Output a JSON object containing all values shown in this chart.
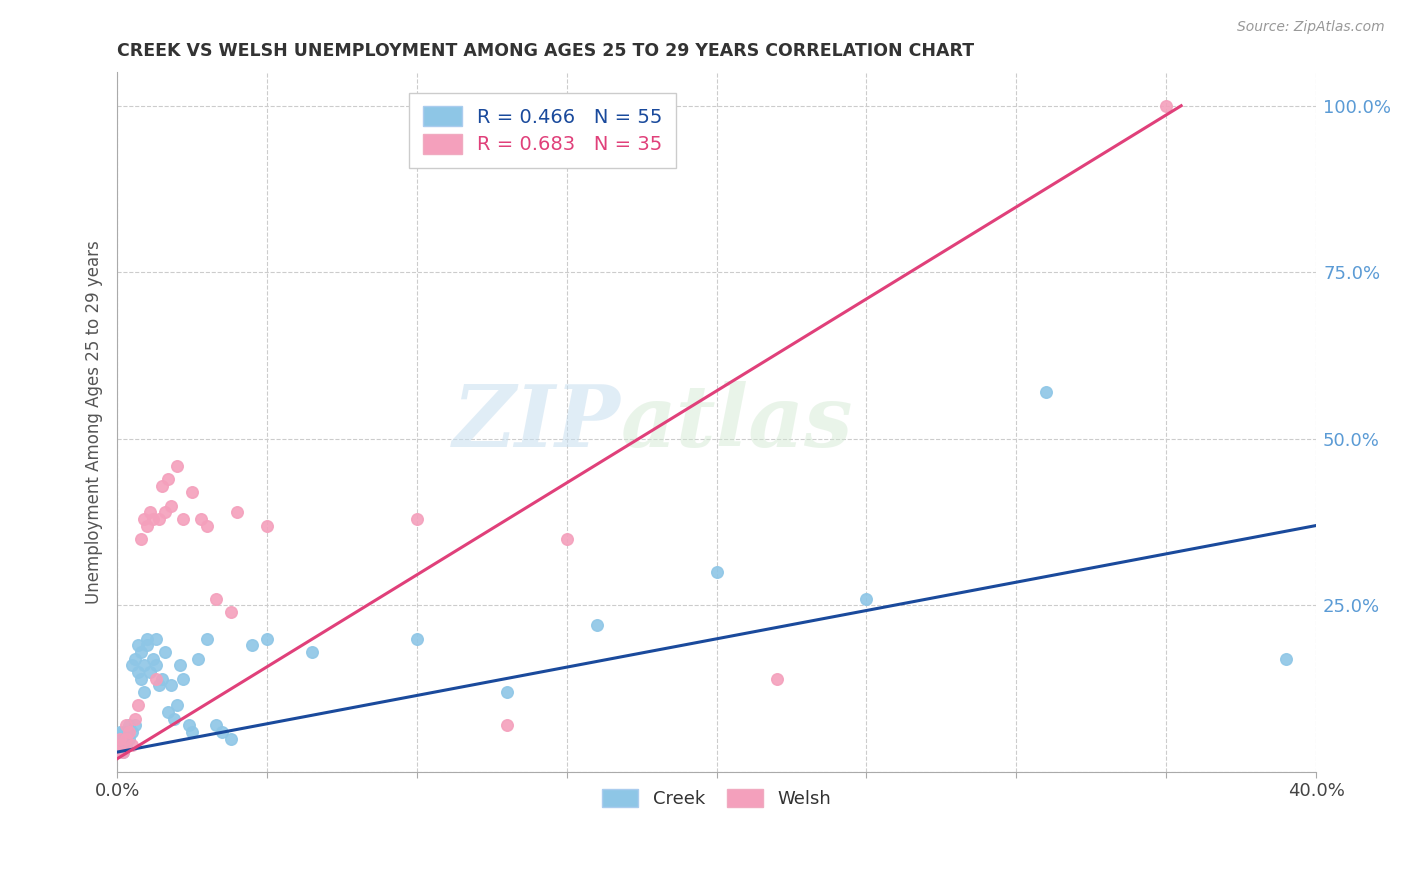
{
  "title": "CREEK VS WELSH UNEMPLOYMENT AMONG AGES 25 TO 29 YEARS CORRELATION CHART",
  "source": "Source: ZipAtlas.com",
  "ylabel": "Unemployment Among Ages 25 to 29 years",
  "xlim": [
    0.0,
    0.4
  ],
  "ylim": [
    0.0,
    1.05
  ],
  "x_ticks": [
    0.0,
    0.05,
    0.1,
    0.15,
    0.2,
    0.25,
    0.3,
    0.35,
    0.4
  ],
  "x_tick_labels": [
    "0.0%",
    "",
    "",
    "",
    "",
    "",
    "",
    "",
    "40.0%"
  ],
  "y_ticks_right": [
    0.0,
    0.25,
    0.5,
    0.75,
    1.0
  ],
  "y_tick_labels_right": [
    "",
    "25.0%",
    "50.0%",
    "75.0%",
    "100.0%"
  ],
  "creek_color": "#8ec6e6",
  "welsh_color": "#f4a0bc",
  "creek_line_color": "#1a4a9c",
  "welsh_line_color": "#e0407a",
  "creek_R": 0.466,
  "creek_N": 55,
  "welsh_R": 0.683,
  "welsh_N": 35,
  "watermark_zip": "ZIP",
  "watermark_atlas": "atlas",
  "background_color": "#ffffff",
  "creek_points_x": [
    0.0,
    0.001,
    0.001,
    0.001,
    0.002,
    0.002,
    0.002,
    0.002,
    0.003,
    0.003,
    0.003,
    0.004,
    0.004,
    0.005,
    0.005,
    0.006,
    0.006,
    0.007,
    0.007,
    0.008,
    0.008,
    0.009,
    0.009,
    0.01,
    0.01,
    0.011,
    0.012,
    0.013,
    0.013,
    0.014,
    0.015,
    0.016,
    0.017,
    0.018,
    0.019,
    0.02,
    0.021,
    0.022,
    0.024,
    0.025,
    0.027,
    0.03,
    0.033,
    0.035,
    0.038,
    0.045,
    0.05,
    0.065,
    0.1,
    0.13,
    0.16,
    0.2,
    0.25,
    0.31,
    0.39
  ],
  "creek_points_y": [
    0.03,
    0.04,
    0.05,
    0.06,
    0.04,
    0.05,
    0.06,
    0.03,
    0.05,
    0.04,
    0.06,
    0.05,
    0.07,
    0.06,
    0.16,
    0.07,
    0.17,
    0.15,
    0.19,
    0.14,
    0.18,
    0.12,
    0.16,
    0.19,
    0.2,
    0.15,
    0.17,
    0.2,
    0.16,
    0.13,
    0.14,
    0.18,
    0.09,
    0.13,
    0.08,
    0.1,
    0.16,
    0.14,
    0.07,
    0.06,
    0.17,
    0.2,
    0.07,
    0.06,
    0.05,
    0.19,
    0.2,
    0.18,
    0.2,
    0.12,
    0.22,
    0.3,
    0.26,
    0.57,
    0.17
  ],
  "welsh_points_x": [
    0.0,
    0.001,
    0.001,
    0.002,
    0.003,
    0.003,
    0.004,
    0.005,
    0.006,
    0.007,
    0.008,
    0.009,
    0.01,
    0.011,
    0.012,
    0.013,
    0.014,
    0.015,
    0.016,
    0.017,
    0.018,
    0.02,
    0.022,
    0.025,
    0.028,
    0.03,
    0.033,
    0.038,
    0.04,
    0.05,
    0.1,
    0.13,
    0.15,
    0.22,
    0.35
  ],
  "welsh_points_y": [
    0.03,
    0.04,
    0.05,
    0.03,
    0.05,
    0.07,
    0.06,
    0.04,
    0.08,
    0.1,
    0.35,
    0.38,
    0.37,
    0.39,
    0.38,
    0.14,
    0.38,
    0.43,
    0.39,
    0.44,
    0.4,
    0.46,
    0.38,
    0.42,
    0.38,
    0.37,
    0.26,
    0.24,
    0.39,
    0.37,
    0.38,
    0.07,
    0.35,
    0.14,
    1.0
  ],
  "creek_line_x": [
    0.0,
    0.4
  ],
  "creek_line_y": [
    0.03,
    0.37
  ],
  "welsh_line_x": [
    0.0,
    0.355
  ],
  "welsh_line_y": [
    0.02,
    1.0
  ]
}
